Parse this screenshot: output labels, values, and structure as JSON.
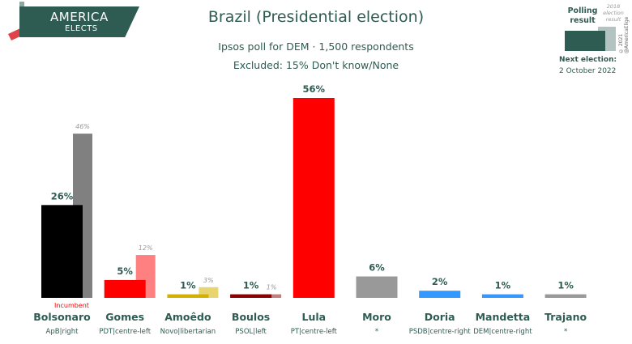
{
  "logo": {
    "line1": "AMERICA",
    "line2": "ELECTS"
  },
  "title": "Brazil (Presidential election)",
  "subtitle1": "Ipsos poll for DEM · 1,500 respondents",
  "subtitle2": "Excluded: 15% Don't know/None",
  "legend": {
    "polling": "Polling result",
    "election": "2018 election result",
    "copyright": "© 2021 @AmericaElige",
    "next_label": "Next election:",
    "next_date": "2 October 2022"
  },
  "colors": {
    "accent": "#2e5c52",
    "incumbent": "#ff0000"
  },
  "chart_data": {
    "type": "bar",
    "ylim": [
      0,
      60
    ],
    "categories": [
      {
        "name": "Bolsonaro",
        "party": "ApB|right",
        "poll": 26,
        "poll_label": "26%",
        "prev": 46,
        "prev_label": "46%",
        "color": "#000000",
        "prev_color": "#808080",
        "note": "Incumbent"
      },
      {
        "name": "Gomes",
        "party": "PDT|centre-left",
        "poll": 5,
        "poll_label": "5%",
        "prev": 12,
        "prev_label": "12%",
        "color": "#ff0000",
        "prev_color": "#ff8080",
        "note": ""
      },
      {
        "name": "Amoêdo",
        "party": "Novo|libertarian",
        "poll": 1,
        "poll_label": "1%",
        "prev": 3,
        "prev_label": "3%",
        "color": "#d4b000",
        "prev_color": "#e8d470",
        "note": ""
      },
      {
        "name": "Boulos",
        "party": "PSOL|left",
        "poll": 1,
        "poll_label": "1%",
        "prev": 1,
        "prev_label": "1%",
        "color": "#8b0000",
        "prev_color": "#c08080",
        "note": ""
      },
      {
        "name": "Lula",
        "party": "PT|centre-left",
        "poll": 56,
        "poll_label": "56%",
        "prev": null,
        "prev_label": "",
        "color": "#ff0000",
        "prev_color": "",
        "note": ""
      },
      {
        "name": "Moro",
        "party": "*",
        "poll": 6,
        "poll_label": "6%",
        "prev": null,
        "prev_label": "",
        "color": "#999999",
        "prev_color": "",
        "note": ""
      },
      {
        "name": "Doria",
        "party": "PSDB|centre-right",
        "poll": 2,
        "poll_label": "2%",
        "prev": null,
        "prev_label": "",
        "color": "#3399ff",
        "prev_color": "",
        "note": ""
      },
      {
        "name": "Mandetta",
        "party": "DEM|centre-right",
        "poll": 1,
        "poll_label": "1%",
        "prev": null,
        "prev_label": "",
        "color": "#3399ff",
        "prev_color": "",
        "note": ""
      },
      {
        "name": "Trajano",
        "party": "*",
        "poll": 1,
        "poll_label": "1%",
        "prev": null,
        "prev_label": "",
        "color": "#999999",
        "prev_color": "",
        "note": ""
      }
    ]
  }
}
